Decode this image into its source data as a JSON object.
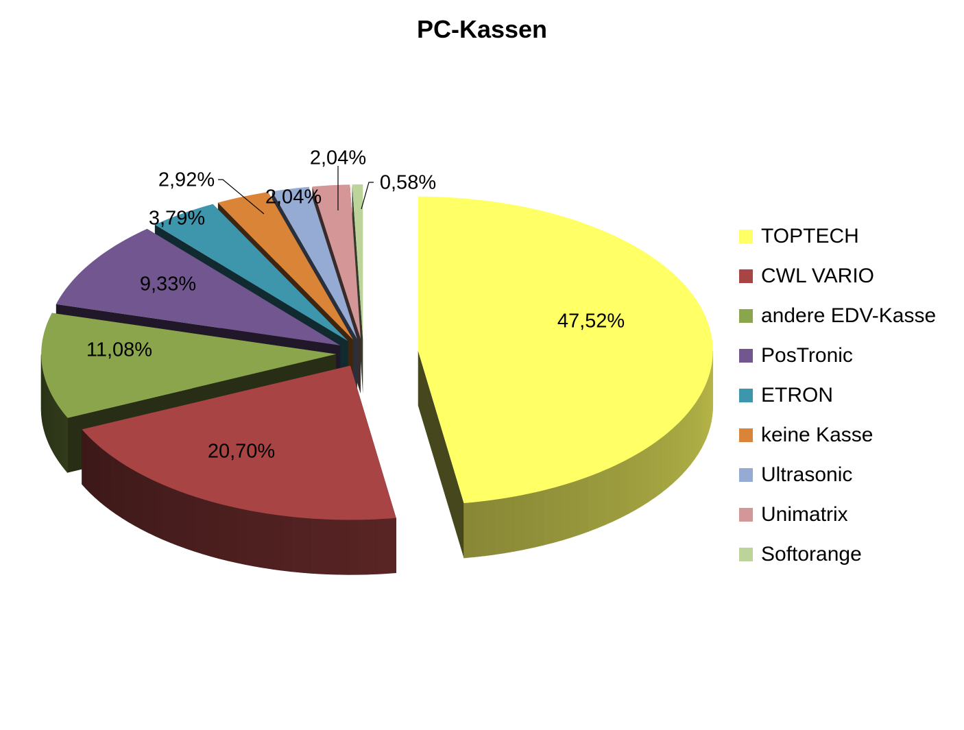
{
  "chart_data": {
    "type": "pie",
    "title": "PC-Kassen",
    "categories": [
      "TOPTECH",
      "CWL VARIO",
      "andere EDV-Kasse",
      "PosTronic",
      "ETRON",
      "keine Kasse",
      "Ultrasonic",
      "Unimatrix",
      "Softorange"
    ],
    "values": [
      47.52,
      20.7,
      11.08,
      9.33,
      3.79,
      2.92,
      2.04,
      2.04,
      0.58
    ],
    "data_labels": [
      "47,52%",
      "20,70%",
      "11,08%",
      "9,33%",
      "3,79%",
      "2,92%",
      "2,04%",
      "2,04%",
      "0,58%"
    ],
    "colors": [
      "#FFFF66",
      "#A84444",
      "#8AA54C",
      "#725690",
      "#3E96AC",
      "#DA8438",
      "#95ABD3",
      "#D49696",
      "#BCD39A"
    ],
    "exploded": true,
    "three_d": true,
    "legend_position": "right"
  }
}
